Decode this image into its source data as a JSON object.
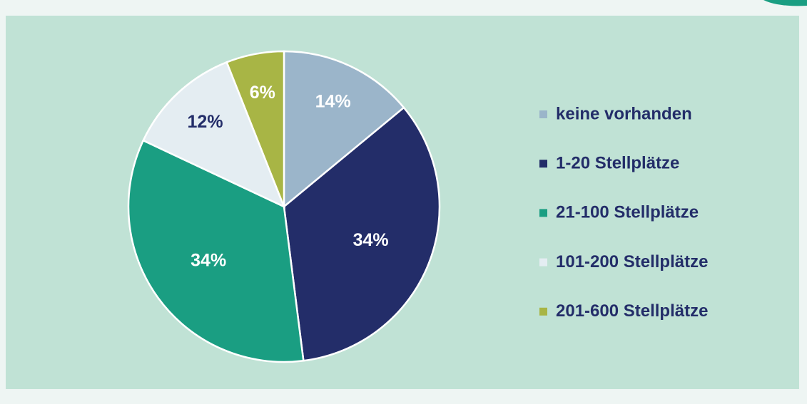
{
  "chart_data": {
    "type": "pie",
    "categories": [
      "keine vorhanden",
      "1-20 Stellplätze",
      "21-100 Stellplätze",
      "101-200 Stellplätze",
      "201-600 Stellplätze"
    ],
    "values": [
      14,
      34,
      34,
      12,
      6
    ],
    "value_labels": [
      "14%",
      "34%",
      "34%",
      "12%",
      "6%"
    ],
    "colors": [
      "#9bb5ca",
      "#232d69",
      "#1a9e82",
      "#e4edf2",
      "#a8b545"
    ],
    "legend": "right"
  }
}
